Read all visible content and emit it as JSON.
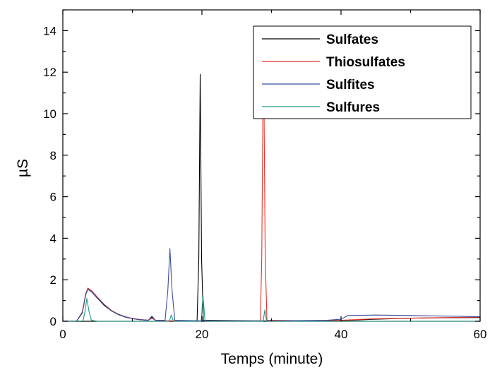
{
  "chart_data": {
    "type": "line",
    "title": "",
    "xlabel": "Temps  (minute)",
    "ylabel": "µS",
    "xlim": [
      0,
      60
    ],
    "ylim": [
      0,
      15
    ],
    "x_ticks": [
      0,
      20,
      40,
      60
    ],
    "y_ticks": [
      0,
      2,
      4,
      6,
      8,
      10,
      12,
      14
    ],
    "grid": false,
    "legend": "top-right",
    "series": [
      {
        "name": "Sulfates",
        "color": "#000000",
        "points": [
          [
            0,
            0
          ],
          [
            2,
            0.02
          ],
          [
            2.8,
            0.4
          ],
          [
            3.3,
            1.3
          ],
          [
            3.6,
            1.55
          ],
          [
            4.2,
            1.4
          ],
          [
            5,
            1.1
          ],
          [
            6,
            0.75
          ],
          [
            7,
            0.5
          ],
          [
            8,
            0.32
          ],
          [
            9,
            0.2
          ],
          [
            10,
            0.13
          ],
          [
            11,
            0.08
          ],
          [
            12.3,
            0.05
          ],
          [
            12.8,
            0.2
          ],
          [
            13.3,
            0.05
          ],
          [
            15,
            0.02
          ],
          [
            19.3,
            0.02
          ],
          [
            19.55,
            3
          ],
          [
            19.75,
            11.9
          ],
          [
            19.95,
            3
          ],
          [
            20.2,
            0.05
          ],
          [
            28,
            0.02
          ],
          [
            40,
            0.03
          ],
          [
            45,
            0.1
          ],
          [
            50,
            0.15
          ],
          [
            55,
            0.17
          ],
          [
            60,
            0.18
          ]
        ]
      },
      {
        "name": "Thiosulfates",
        "color": "#e8312a",
        "points": [
          [
            0,
            0
          ],
          [
            2,
            0.02
          ],
          [
            2.8,
            0.45
          ],
          [
            3.3,
            1.35
          ],
          [
            3.6,
            1.6
          ],
          [
            4.2,
            1.45
          ],
          [
            5,
            1.15
          ],
          [
            6,
            0.8
          ],
          [
            7,
            0.52
          ],
          [
            8,
            0.34
          ],
          [
            9,
            0.22
          ],
          [
            10,
            0.14
          ],
          [
            11,
            0.09
          ],
          [
            12.3,
            0.05
          ],
          [
            12.8,
            0.15
          ],
          [
            13.3,
            0.05
          ],
          [
            15,
            0.02
          ],
          [
            28.4,
            0.02
          ],
          [
            28.6,
            3
          ],
          [
            28.85,
            13.7
          ],
          [
            29.1,
            3
          ],
          [
            29.35,
            0.05
          ],
          [
            35,
            0.03
          ],
          [
            40,
            0.05
          ],
          [
            45,
            0.12
          ],
          [
            50,
            0.15
          ],
          [
            55,
            0.18
          ],
          [
            60,
            0.2
          ]
        ]
      },
      {
        "name": "Sulfites",
        "color": "#3b4da0",
        "points": [
          [
            0,
            0
          ],
          [
            2,
            0.02
          ],
          [
            2.8,
            0.42
          ],
          [
            3.3,
            1.3
          ],
          [
            3.6,
            1.55
          ],
          [
            4.2,
            1.42
          ],
          [
            5,
            1.12
          ],
          [
            6,
            0.78
          ],
          [
            7,
            0.5
          ],
          [
            8,
            0.33
          ],
          [
            9,
            0.21
          ],
          [
            10,
            0.13
          ],
          [
            11,
            0.08
          ],
          [
            12.3,
            0.05
          ],
          [
            12.8,
            0.25
          ],
          [
            13.3,
            0.05
          ],
          [
            14.7,
            0.05
          ],
          [
            15.1,
            1.5
          ],
          [
            15.4,
            3.5
          ],
          [
            15.7,
            1.5
          ],
          [
            16.1,
            0.05
          ],
          [
            20,
            0.02
          ],
          [
            30,
            0.02
          ],
          [
            38,
            0.05
          ],
          [
            40,
            0.1
          ],
          [
            41,
            0.28
          ],
          [
            45,
            0.3
          ],
          [
            50,
            0.28
          ],
          [
            55,
            0.25
          ],
          [
            60,
            0.22
          ]
        ]
      },
      {
        "name": "Sulfures",
        "color": "#1d9a86",
        "points": [
          [
            0,
            0
          ],
          [
            2.9,
            0.02
          ],
          [
            3.2,
            0.5
          ],
          [
            3.45,
            1.1
          ],
          [
            3.75,
            0.5
          ],
          [
            4.1,
            0.05
          ],
          [
            5,
            0
          ],
          [
            15.3,
            0
          ],
          [
            15.6,
            0.3
          ],
          [
            15.9,
            0
          ],
          [
            19.9,
            0
          ],
          [
            20.15,
            1.25
          ],
          [
            20.45,
            0
          ],
          [
            28.8,
            0
          ],
          [
            29.05,
            0.55
          ],
          [
            29.3,
            0
          ],
          [
            60,
            0
          ]
        ]
      }
    ]
  }
}
